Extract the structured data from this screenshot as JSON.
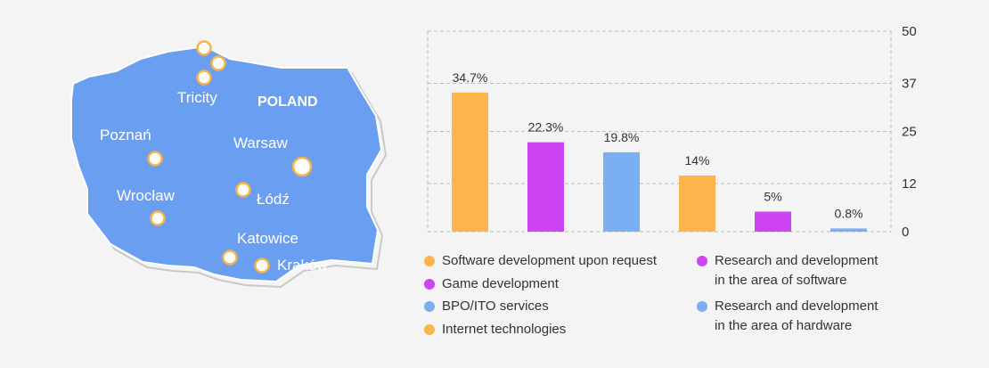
{
  "map": {
    "country_label": "POLAND",
    "cities": [
      {
        "name": "Tricity"
      },
      {
        "name": "Poznań"
      },
      {
        "name": "Warsaw"
      },
      {
        "name": "Wrocław"
      },
      {
        "name": "Łódź"
      },
      {
        "name": "Katowice"
      },
      {
        "name": "Kraków"
      }
    ],
    "colors": {
      "land": "#6a9ef0",
      "outline": "#c9c9c9",
      "marker": "#f6b44b"
    }
  },
  "chart_data": {
    "type": "bar",
    "categories": [
      "Software development upon request",
      "Game development",
      "BPO/ITO services",
      "Internet technologies",
      "Research and development in the area of software",
      "Research and development in the area of hardware"
    ],
    "values": [
      34.7,
      22.3,
      19.8,
      14,
      5,
      0.8
    ],
    "data_labels": [
      "34.7%",
      "22.3%",
      "19.8%",
      "14%",
      "5%",
      "0.8%"
    ],
    "colors": [
      "#fbb54a",
      "#cd44f2",
      "#7aaff2",
      "#fbb54a",
      "#cd44f2",
      "#7aaff2"
    ],
    "ylim": [
      0,
      50
    ],
    "yticks": [
      0,
      12,
      25,
      37,
      50
    ],
    "y_axis_side": "right",
    "grid": true,
    "grid_style": "dashed",
    "legend_placement": "bottom"
  },
  "legend": {
    "col1": [
      {
        "label": "Software development upon request",
        "color": "#fbb54a"
      },
      {
        "label": "Game development",
        "color": "#cd44f2"
      },
      {
        "label": "BPO/ITO services",
        "color": "#7aaff2"
      },
      {
        "label": "Internet technologies",
        "color": "#fbb54a"
      }
    ],
    "col2": [
      {
        "label": "Research and development\nin the area of software",
        "color": "#cd44f2"
      },
      {
        "label": "Research and development\nin the area of hardware",
        "color": "#7aaff2"
      }
    ]
  }
}
